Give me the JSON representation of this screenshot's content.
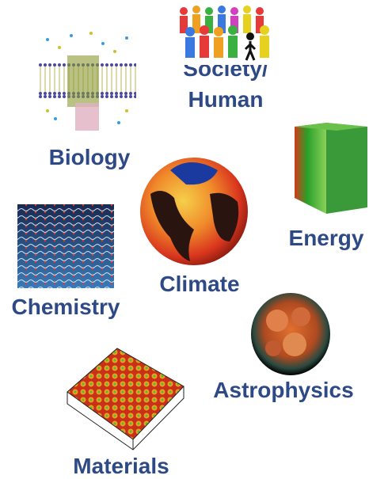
{
  "nodes": [
    {
      "lines": [
        "Society/",
        "Human"
      ]
    },
    {
      "label": "Biology"
    },
    {
      "label": "Energy"
    },
    {
      "label": "Climate"
    },
    {
      "label": "Chemistry"
    },
    {
      "label": "Astrophysics"
    },
    {
      "label": "Materials"
    }
  ]
}
